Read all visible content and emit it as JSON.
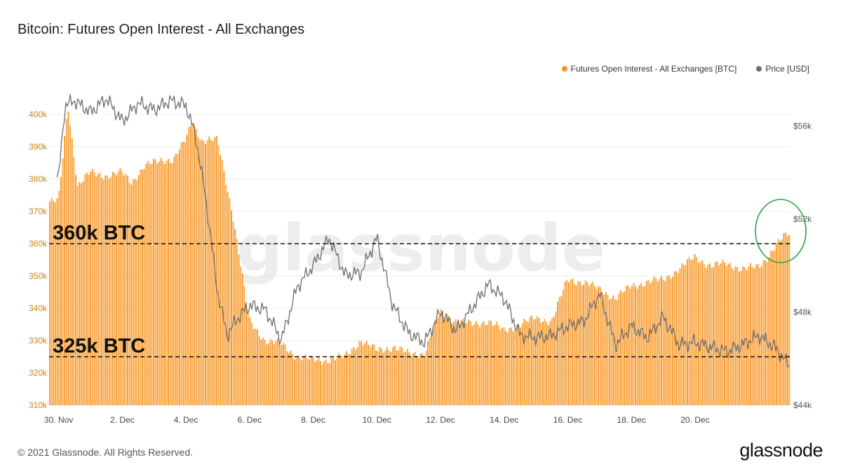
{
  "title": "Bitcoin: Futures Open Interest - All Exchanges",
  "footer": "© 2021 Glassnode. All Rights Reserved.",
  "brand": "glassnode",
  "watermark": "glassnode",
  "colors": {
    "oi": "#f7931a",
    "price": "#707070",
    "circle": "#2aa54a"
  },
  "legend": {
    "oi": "Futures Open Interest - All Exchanges [BTC]",
    "price": "Price [USD]"
  },
  "annotations": {
    "upper": "360k BTC",
    "lower": "325k BTC"
  },
  "chart_data": {
    "type": "bar",
    "title": "Bitcoin: Futures Open Interest - All Exchanges",
    "x_range": [
      "28 Nov",
      "21 Dec"
    ],
    "x_ticks": [
      "30. Nov",
      "2. Dec",
      "4. Dec",
      "6. Dec",
      "8. Dec",
      "10. Dec",
      "12. Dec",
      "14. Dec",
      "16. Dec",
      "18. Dec",
      "20. Dec"
    ],
    "y_left": {
      "ticks": [
        "310k",
        "320k",
        "330k",
        "340k",
        "350k",
        "360k",
        "370k",
        "380k",
        "390k",
        "400k"
      ],
      "range": [
        310000,
        405000
      ]
    },
    "y_right": {
      "ticks": [
        "$44k",
        "$48k",
        "$52k",
        "$56k"
      ],
      "range": [
        44000,
        57200
      ]
    },
    "reference_lines": [
      360000,
      325000
    ],
    "series": [
      {
        "name": "Futures Open Interest - All Exchanges [BTC]",
        "axis": "left",
        "type": "bar",
        "days": [
          0,
          0.3,
          0.6,
          1,
          1.5,
          2,
          2.3,
          2.7,
          3,
          3.3,
          3.6,
          4,
          4.2,
          4.5,
          5,
          5.5,
          6,
          6.5,
          7,
          7.5,
          8,
          8.5,
          9,
          9.5,
          10,
          10.5,
          11,
          11.5,
          12,
          12.5,
          13,
          13.5,
          14,
          14.5,
          15,
          15.5,
          16,
          16.5,
          17,
          17.5,
          18,
          18.5,
          19,
          19.5,
          20,
          20.5,
          21,
          21.5,
          22,
          22.3,
          22.6,
          22.9
        ],
        "values": [
          373000,
          403000,
          378000,
          382000,
          381000,
          382000,
          379000,
          384000,
          385000,
          386000,
          386000,
          392000,
          398000,
          392000,
          392000,
          368000,
          336000,
          330000,
          329000,
          325000,
          324000,
          324000,
          325000,
          330000,
          327000,
          328000,
          326000,
          326000,
          339000,
          336000,
          335000,
          336000,
          333000,
          335000,
          337000,
          336000,
          349000,
          348000,
          346000,
          343000,
          347000,
          348000,
          349000,
          352000,
          356000,
          353000,
          354000,
          352000,
          353000,
          356000,
          360000,
          363000
        ]
      },
      {
        "name": "Price [USD]",
        "axis": "right",
        "type": "line",
        "days": [
          0,
          0.2,
          0.5,
          1,
          1.5,
          2,
          2.5,
          3,
          3.5,
          4,
          4.3,
          4.6,
          4.8,
          5,
          5.3,
          5.6,
          6,
          6.5,
          7,
          7.5,
          8,
          8.5,
          9,
          9.5,
          10,
          10.5,
          11,
          11.5,
          12,
          12.5,
          13,
          13.5,
          14,
          14.5,
          15,
          15.5,
          16,
          16.5,
          17,
          17.5,
          18,
          18.5,
          19,
          19.5,
          20,
          20.5,
          21,
          21.5,
          22,
          22.5,
          22.9
        ],
        "values": [
          53800,
          56900,
          57100,
          56600,
          57200,
          56200,
          57000,
          56700,
          57100,
          56900,
          55600,
          53100,
          51000,
          48800,
          47000,
          47700,
          48300,
          48100,
          46800,
          49100,
          50000,
          51200,
          49600,
          49700,
          51200,
          48300,
          47100,
          46700,
          48000,
          47200,
          48200,
          49200,
          48600,
          47000,
          46900,
          47000,
          47400,
          47600,
          48800,
          46600,
          47400,
          46900,
          47800,
          46600,
          46700,
          46500,
          46300,
          46600,
          47000,
          46500,
          45800
        ]
      }
    ]
  }
}
